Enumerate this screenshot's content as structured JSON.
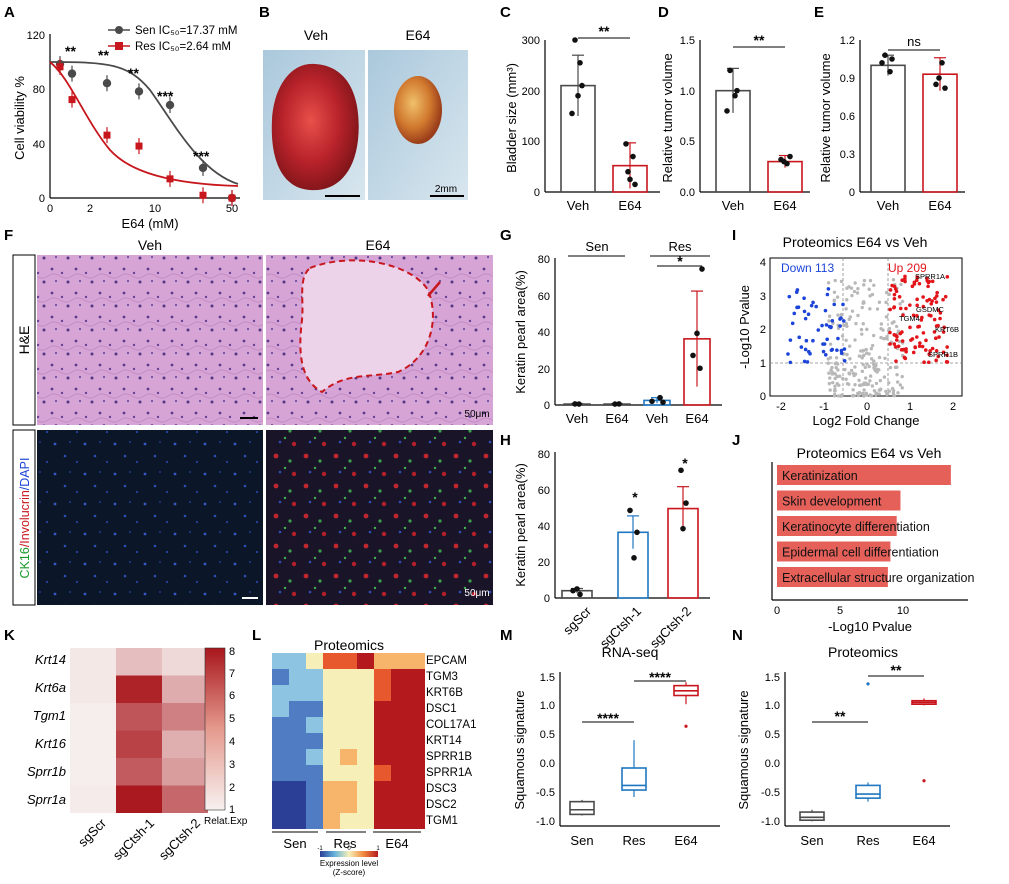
{
  "panel_letters": [
    "A",
    "B",
    "C",
    "D",
    "E",
    "F",
    "G",
    "H",
    "I",
    "J",
    "K",
    "L",
    "M",
    "N"
  ],
  "colors": {
    "sen": "#4a4a4a",
    "res": "#c8161d",
    "res_box": "#1f77c2",
    "e64_box": "#c8161d",
    "up": "#e2151b",
    "down": "#1d44d8",
    "gray_pt": "#b8b8b8",
    "bar_fill": "#e6605a",
    "he_pink": "#d9a8d4",
    "if_dark": "#0e1a2e"
  },
  "A": {
    "ylabel": "Cell viability %",
    "xlabel": "E64 (mM)",
    "yticks": [
      "0",
      "40",
      "80",
      "120"
    ],
    "xticks": [
      "0",
      "2",
      "10",
      "50"
    ],
    "legend": [
      "Sen IC₅₀=17.37 mM",
      "Res IC₅₀=2.64 mM"
    ],
    "stars": [
      "**",
      "**",
      "**",
      "***",
      "***"
    ]
  },
  "B": {
    "left": "Veh",
    "right": "E64",
    "scale": "2mm"
  },
  "C": {
    "ylabel": "Bladder size (mm³)",
    "yticks": [
      "0",
      "100",
      "200",
      "300"
    ],
    "cats": [
      "Veh",
      "E64"
    ],
    "sig": "**"
  },
  "D": {
    "ylabel": "Relative tumor volume",
    "yticks": [
      "0.0",
      "0.5",
      "1.0",
      "1.5"
    ],
    "cats": [
      "Veh",
      "E64"
    ],
    "sig": "**"
  },
  "E": {
    "ylabel": "Relative tumor volume",
    "yticks": [
      "0",
      "0.3",
      "0.6",
      "0.9",
      "1.2"
    ],
    "cats": [
      "Veh",
      "E64"
    ],
    "sig": "ns"
  },
  "F": {
    "col1": "Veh",
    "col2": "E64",
    "row1": "H&E",
    "row2_a": "CK16",
    "row2_b": "/Involucrin",
    "row2_c": "/DAPI",
    "scale1": "50μm",
    "scale2": "50μm"
  },
  "G": {
    "ylabel": "Keratin pearl area(%)",
    "yticks": [
      "0",
      "20",
      "40",
      "60",
      "80"
    ],
    "cats": [
      "Veh",
      "E64",
      "Veh",
      "E64"
    ],
    "groups": [
      "Sen",
      "Res"
    ],
    "sig": "*"
  },
  "H": {
    "ylabel": "Keratin pearl area(%)",
    "yticks": [
      "0",
      "20",
      "40",
      "60",
      "80"
    ],
    "cats": [
      "sgScr",
      "sgCtsh-1",
      "sgCtsh-2"
    ],
    "sig": [
      "*",
      "*"
    ]
  },
  "I": {
    "title": "Proteomics E64 vs Veh",
    "xlabel": "Log2 Fold Change",
    "ylabel": "-Log10 Pvalue",
    "down": "Down 113",
    "up": "Up 209",
    "xticks": [
      "-2",
      "-1",
      "0",
      "1",
      "2"
    ],
    "yticks": [
      "0",
      "1",
      "2",
      "3",
      "4"
    ],
    "genes": [
      "SPRR1A",
      "GSDMC",
      "TGM4",
      "KRT6B",
      "SPRR1B"
    ]
  },
  "J": {
    "title": "Proteomics E64 vs Veh",
    "xlabel": "-Log10 Pvalue",
    "xticks": [
      "0",
      "5",
      "10"
    ],
    "terms": [
      "Keratinization",
      "Skin development",
      "Keratinocyte differentiation",
      "Epidermal cell differentiation",
      "Extracellular structure organization"
    ]
  },
  "K": {
    "rows": [
      "Krt14",
      "Krt6a",
      "Tgm1",
      "Krt16",
      "Sprr1b",
      "Sprr1a"
    ],
    "cols": [
      "sgScr",
      "sgCtsh-1",
      "sgCtsh-2"
    ],
    "scale": [
      "8",
      "7",
      "6",
      "5",
      "4",
      "3",
      "2",
      "1"
    ],
    "scale_label": "Relat.Exp"
  },
  "L": {
    "title": "Proteomics",
    "genes": [
      "EPCAM",
      "TGM3",
      "KRT6B",
      "DSC1",
      "COL17A1",
      "KRT14",
      "SPRR1B",
      "SPRR1A",
      "DSC3",
      "DSC2",
      "TGM1"
    ],
    "groups": [
      "Sen",
      "Res",
      "E64"
    ],
    "legend_ticks": [
      "-1",
      "0",
      "1"
    ],
    "legend_title": "Expression level",
    "legend_sub": "(Z-score)"
  },
  "M": {
    "title": "RNA-seq",
    "ylabel": "Squamous signature",
    "yticks": [
      "-1.0",
      "-0.5",
      "0.0",
      "0.5",
      "1.0",
      "1.5"
    ],
    "cats": [
      "Sen",
      "Res",
      "E64"
    ],
    "sig": [
      "****",
      "****"
    ]
  },
  "N": {
    "title": "Proteomics",
    "ylabel": "Squamous signature",
    "yticks": [
      "-1.0",
      "-0.5",
      "0.0",
      "0.5",
      "1.0",
      "1.5"
    ],
    "cats": [
      "Sen",
      "Res",
      "E64"
    ],
    "sig": [
      "**",
      "**"
    ]
  },
  "chart_data": [
    {
      "panel": "A",
      "type": "scatter",
      "x": [
        0.5,
        1,
        2,
        5,
        10,
        20,
        50
      ],
      "series": [
        {
          "name": "Sen IC₅₀=17.37 mM",
          "values": [
            98,
            91,
            84,
            78,
            68,
            22,
            0
          ]
        },
        {
          "name": "Res IC₅₀=2.64 mM",
          "values": [
            96,
            72,
            46,
            38,
            14,
            2,
            0
          ]
        }
      ],
      "ylim": [
        0,
        120
      ]
    },
    {
      "panel": "C",
      "type": "bar",
      "categories": [
        "Veh",
        "E64"
      ],
      "values": [
        210,
        52
      ],
      "ylim": [
        0,
        300
      ]
    },
    {
      "panel": "D",
      "type": "bar",
      "categories": [
        "Veh",
        "E64"
      ],
      "values": [
        1.0,
        0.3
      ],
      "ylim": [
        0,
        1.5
      ]
    },
    {
      "panel": "E",
      "type": "bar",
      "categories": [
        "Veh",
        "E64"
      ],
      "values": [
        1.0,
        0.93
      ],
      "ylim": [
        0,
        1.2
      ]
    },
    {
      "panel": "G",
      "type": "bar",
      "categories": [
        "Veh",
        "E64",
        "Veh",
        "E64"
      ],
      "values": [
        0.5,
        0.5,
        2.5,
        36
      ],
      "ylim": [
        0,
        80
      ]
    },
    {
      "panel": "H",
      "type": "bar",
      "categories": [
        "sgScr",
        "sgCtsh-1",
        "sgCtsh-2"
      ],
      "values": [
        4,
        36,
        49
      ],
      "ylim": [
        0,
        80
      ]
    },
    {
      "panel": "J",
      "type": "bar",
      "categories": [
        "Keratinization",
        "Skin development",
        "Keratinocyte differentiation",
        "Epidermal cell differentiation",
        "Extracellular structure organization"
      ],
      "values": [
        13.8,
        9.8,
        9.5,
        9.0,
        8.8
      ],
      "xlim": [
        0,
        14
      ]
    },
    {
      "panel": "M",
      "type": "box",
      "categories": [
        "Sen",
        "Res",
        "E64"
      ],
      "medians": [
        -0.72,
        -0.3,
        1.33
      ],
      "ylim": [
        -1.0,
        1.5
      ]
    },
    {
      "panel": "N",
      "type": "box",
      "categories": [
        "Sen",
        "Res",
        "E64"
      ],
      "medians": [
        -0.85,
        -0.45,
        1.13
      ],
      "ylim": [
        -1.0,
        1.5
      ]
    }
  ]
}
